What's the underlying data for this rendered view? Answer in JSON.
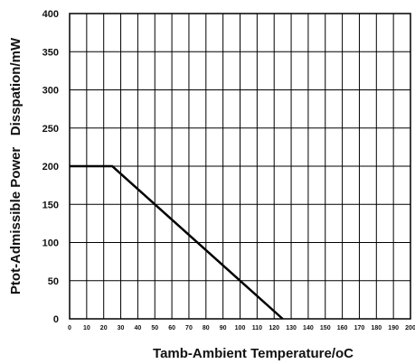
{
  "chart_data": {
    "type": "line",
    "title": "",
    "xlabel": "Tamb-Ambient Temperature/oC",
    "ylabel": "Ptot-Admissible Power   Disspation/mW",
    "xlim": [
      0,
      200
    ],
    "ylim": [
      0,
      400
    ],
    "x_ticks": [
      "0",
      "10",
      "20",
      "30",
      "40",
      "50",
      "60",
      "70",
      "80",
      "90",
      "100",
      "110",
      "120",
      "130",
      "140",
      "150",
      "160",
      "170",
      "180",
      "190",
      "200"
    ],
    "y_ticks": [
      "0",
      "50",
      "100",
      "150",
      "200",
      "250",
      "300",
      "350",
      "400"
    ],
    "grid": true,
    "legend": "none",
    "series": [
      {
        "color": "#000000",
        "x": [
          0,
          25,
          125
        ],
        "y": [
          200,
          200,
          0
        ]
      }
    ]
  }
}
